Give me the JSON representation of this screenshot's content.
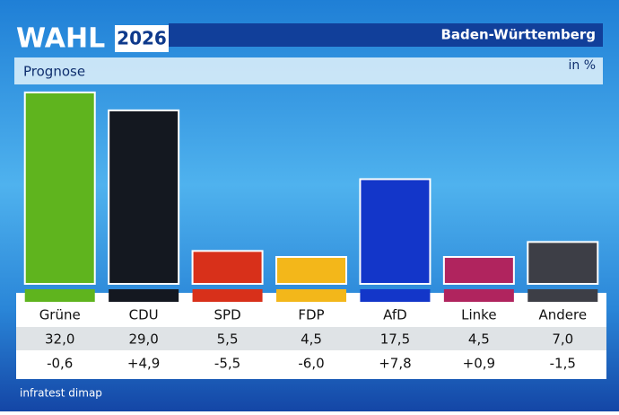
{
  "chart_data": {
    "type": "bar",
    "brand": "WAHL",
    "year": "2026",
    "region": "Baden-Württemberg",
    "title": "Prognose",
    "unit": "in %",
    "categories": [
      "Grüne",
      "CDU",
      "SPD",
      "FDP",
      "AfD",
      "Linke",
      "Andere"
    ],
    "values": [
      32.0,
      29.0,
      5.5,
      4.5,
      17.5,
      4.5,
      7.0
    ],
    "value_labels": [
      "32,0",
      "29,0",
      "5,5",
      "4,5",
      "17,5",
      "4,5",
      "7,0"
    ],
    "colors": [
      "#5fb41e",
      "#141820",
      "#d8301a",
      "#f3b71a",
      "#1336c9",
      "#b0245e",
      "#3d3e46"
    ],
    "changes": [
      -0.6,
      4.9,
      -5.5,
      -6.0,
      7.8,
      0.9,
      -1.5
    ],
    "change_labels": [
      "-0,6",
      "+4,9",
      "-5,5",
      "-6,0",
      "+7,8",
      "+0,9",
      "-1,5"
    ],
    "source": "infratest dimap"
  }
}
